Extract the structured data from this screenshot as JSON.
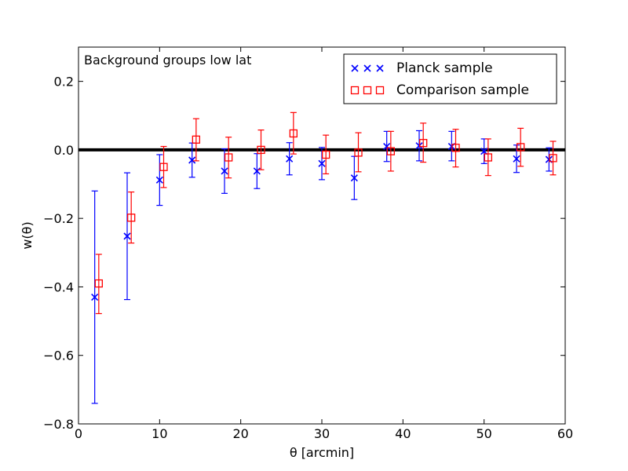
{
  "chart_data": {
    "type": "scatter",
    "title": "",
    "annotation": "Background groups low lat",
    "xlabel": "θ [arcmin]",
    "ylabel": "w(θ)",
    "xlim": [
      0,
      60
    ],
    "ylim": [
      -0.8,
      0.3
    ],
    "xticks": [
      0,
      10,
      20,
      30,
      40,
      50,
      60
    ],
    "yticks": [
      -0.8,
      -0.6,
      -0.4,
      -0.2,
      0.0,
      0.2
    ],
    "xtick_labels": [
      "0",
      "10",
      "20",
      "30",
      "40",
      "50",
      "60"
    ],
    "ytick_labels": [
      "−0.8",
      "−0.6",
      "−0.4",
      "−0.2",
      "0.0",
      "0.2"
    ],
    "reference_line_y": 0,
    "legend": {
      "position": "top-right"
    },
    "series": [
      {
        "name": "Planck sample",
        "marker": "x",
        "color": "#0000ff",
        "x": [
          2,
          6,
          10,
          14,
          18,
          22,
          26,
          30,
          34,
          38,
          42,
          46,
          50,
          54,
          58
        ],
        "y": [
          -0.43,
          -0.252,
          -0.088,
          -0.03,
          -0.062,
          -0.062,
          -0.026,
          -0.04,
          -0.082,
          0.01,
          0.012,
          0.01,
          -0.004,
          -0.026,
          -0.028
        ],
        "err_low": [
          -0.74,
          -0.437,
          -0.162,
          -0.08,
          -0.127,
          -0.113,
          -0.073,
          -0.087,
          -0.145,
          -0.034,
          -0.032,
          -0.032,
          -0.04,
          -0.066,
          -0.062
        ],
        "err_high": [
          -0.12,
          -0.067,
          -0.014,
          0.02,
          0.003,
          -0.011,
          0.021,
          0.007,
          -0.019,
          0.054,
          0.056,
          0.054,
          0.032,
          0.014,
          0.006
        ]
      },
      {
        "name": "Comparison sample",
        "marker": "s",
        "color": "#ff0000",
        "x": [
          2.5,
          6.5,
          10.5,
          14.5,
          18.5,
          22.5,
          26.5,
          30.5,
          34.5,
          38.5,
          42.5,
          46.5,
          50.5,
          54.5,
          58.5
        ],
        "y": [
          -0.39,
          -0.198,
          -0.05,
          0.03,
          -0.022,
          0.0,
          0.048,
          -0.014,
          -0.008,
          -0.004,
          0.02,
          0.006,
          -0.022,
          0.008,
          -0.024
        ],
        "err_low": [
          -0.478,
          -0.272,
          -0.11,
          -0.032,
          -0.082,
          -0.058,
          -0.012,
          -0.07,
          -0.064,
          -0.062,
          -0.036,
          -0.05,
          -0.075,
          -0.048,
          -0.073
        ],
        "err_high": [
          -0.305,
          -0.123,
          0.01,
          0.091,
          0.037,
          0.058,
          0.109,
          0.043,
          0.05,
          0.054,
          0.078,
          0.06,
          0.032,
          0.063,
          0.025
        ]
      }
    ]
  }
}
